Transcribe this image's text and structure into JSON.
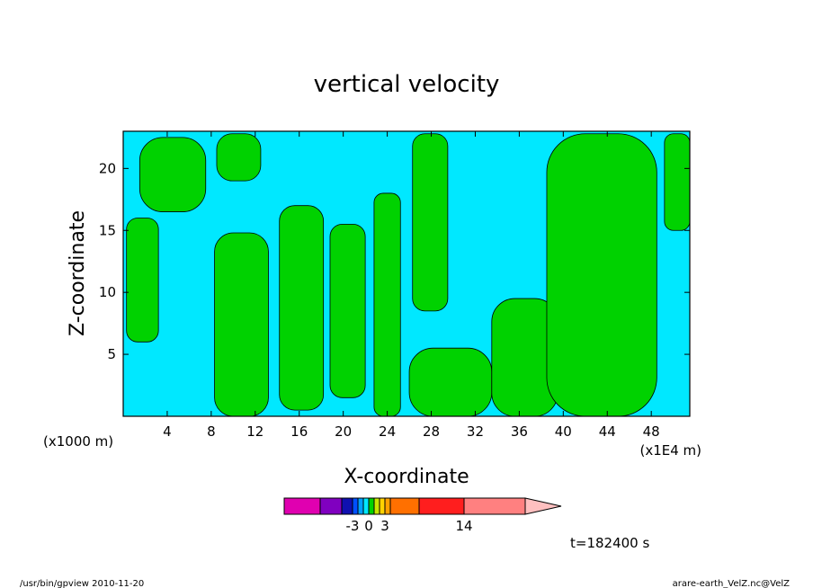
{
  "chart_data": {
    "type": "heatmap",
    "title": "vertical velocity",
    "xlabel": "X-coordinate",
    "ylabel": "Z-coordinate",
    "x_unit_left": "(x1000 m)",
    "x_unit_right": "(x1E4 m)",
    "xlim": [
      0,
      51.5
    ],
    "ylim": [
      0,
      23
    ],
    "x_ticks": [
      4,
      8,
      12,
      16,
      20,
      24,
      28,
      32,
      36,
      40,
      44,
      48
    ],
    "y_ticks": [
      5,
      10,
      15,
      20
    ],
    "regions": [
      {
        "level": "positive",
        "color": "#00d200",
        "x": [
          0.3,
          3.2
        ],
        "z": [
          6.0,
          16.0
        ]
      },
      {
        "level": "positive",
        "color": "#00d200",
        "x": [
          1.5,
          7.5
        ],
        "z": [
          16.5,
          22.5
        ]
      },
      {
        "level": "positive",
        "color": "#00d200",
        "x": [
          8.5,
          12.5
        ],
        "z": [
          19.0,
          22.8
        ]
      },
      {
        "level": "positive",
        "color": "#00d200",
        "x": [
          8.3,
          13.2
        ],
        "z": [
          0.0,
          14.8
        ]
      },
      {
        "level": "positive",
        "color": "#00d200",
        "x": [
          14.2,
          18.2
        ],
        "z": [
          0.5,
          17.0
        ]
      },
      {
        "level": "positive",
        "color": "#00d200",
        "x": [
          18.8,
          22.0
        ],
        "z": [
          1.5,
          15.5
        ]
      },
      {
        "level": "positive",
        "color": "#00d200",
        "x": [
          22.8,
          25.2
        ],
        "z": [
          0.0,
          18.0
        ]
      },
      {
        "level": "positive",
        "color": "#00d200",
        "x": [
          26.3,
          29.5
        ],
        "z": [
          8.5,
          22.8
        ]
      },
      {
        "level": "positive",
        "color": "#00d200",
        "x": [
          26.0,
          33.5
        ],
        "z": [
          0.0,
          5.5
        ]
      },
      {
        "level": "positive",
        "color": "#00d200",
        "x": [
          33.5,
          39.5
        ],
        "z": [
          0.0,
          9.5
        ]
      },
      {
        "level": "positive",
        "color": "#00d200",
        "x": [
          38.5,
          48.5
        ],
        "z": [
          0.0,
          22.8
        ]
      },
      {
        "level": "positive",
        "color": "#00d200",
        "x": [
          49.2,
          51.5
        ],
        "z": [
          15.0,
          22.8
        ]
      }
    ],
    "background": {
      "level": "negative",
      "color": "#00e8ff"
    },
    "colorbar": {
      "colors": [
        "#e000b0",
        "#8000c0",
        "#1010b0",
        "#0050ff",
        "#00a0ff",
        "#00e8ff",
        "#00d200",
        "#c8e600",
        "#ffd200",
        "#ffa000",
        "#ff7000",
        "#ff1e1e",
        "#ff8080",
        "#ffc0c0"
      ],
      "widths": [
        40,
        24,
        12,
        6,
        6,
        6,
        6,
        6,
        6,
        6,
        32,
        50,
        68,
        40
      ],
      "labels": [
        {
          "text": "-3",
          "after_index": 2
        },
        {
          "text": "0",
          "after_index": 5
        },
        {
          "text": "3",
          "after_index": 8
        },
        {
          "text": "14",
          "after_index": 11
        }
      ]
    },
    "time_label": "t=182400 s"
  },
  "footer": {
    "left": "/usr/bin/gpview   2010-11-20",
    "right": "arare-earth_VelZ.nc@VelZ"
  }
}
